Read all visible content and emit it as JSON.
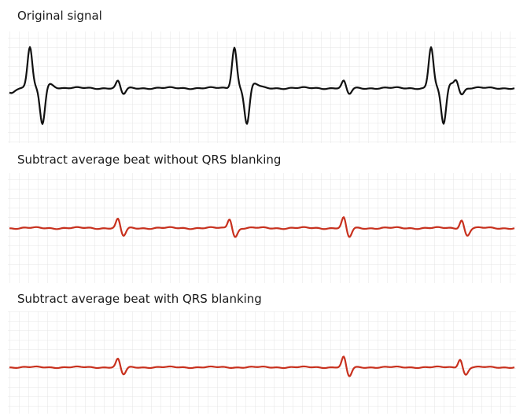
{
  "panels": [
    {
      "title": "Original signal"
    },
    {
      "title": "Subtract average beat without QRS blanking"
    },
    {
      "title": "Subtract average beat with QRS blanking"
    }
  ]
}
